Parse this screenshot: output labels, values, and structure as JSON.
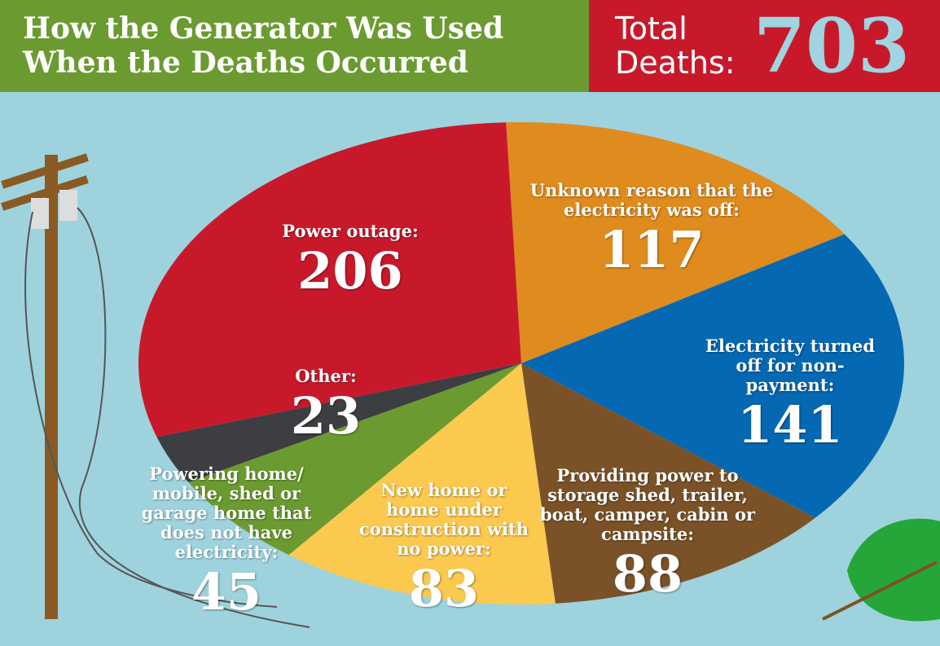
{
  "chart_data": {
    "type": "pie",
    "title": "How the Generator Was Used When the Deaths Occurred",
    "total_label": "Total Deaths:",
    "total": 703,
    "categories": [
      "Unknown reason that the electricity was off:",
      "Electricity turned off for non-payment:",
      "Providing power to storage shed, trailer, boat, camper, cabin or campsite:",
      "New home or home under construction with no power:",
      "Powering home/ mobile, shed or garage home that does not have electricity:",
      "Other:",
      "Power outage:"
    ],
    "values": [
      117,
      141,
      88,
      83,
      45,
      23,
      206
    ],
    "colors": [
      "#e08b1e",
      "#0568b3",
      "#7b5228",
      "#fcc94f",
      "#6b9b30",
      "#3d3e42",
      "#c8192b"
    ]
  }
}
